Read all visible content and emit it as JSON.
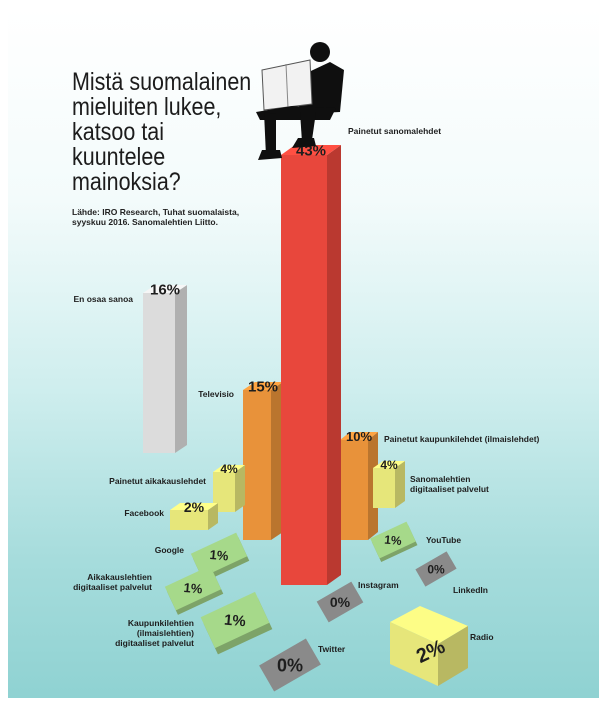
{
  "colors": {
    "red": "#e8473c",
    "orange": "#e8923a",
    "gray": "#dcdcdc",
    "yellow": "#e6e67a",
    "green": "#a6d98a",
    "darkgray": "#8a8a8a"
  },
  "icons": {
    "reader": "man-reading-newspaper-icon"
  },
  "chart_data": {
    "type": "bar",
    "title": "Mistä suomalainen\nmieluiten lukee,\nkatsoo tai kuuntelee\nmainoksia?",
    "source": "Lähde: IRO Research, Tuhat suomalaista,\nsyyskuu 2016. Sanomalehtien Liitto.",
    "unit": "%",
    "series": [
      {
        "label": "Painetut sanomalehdet",
        "value": 43,
        "display": "43%"
      },
      {
        "label": "En osaa sanoa",
        "value": 16,
        "display": "16%"
      },
      {
        "label": "Televisio",
        "value": 15,
        "display": "15%"
      },
      {
        "label": "Painetut kaupunkilehdet (ilmaislehdet)",
        "value": 10,
        "display": "10%"
      },
      {
        "label": "Painetut aikakauslehdet",
        "value": 4,
        "display": "4%"
      },
      {
        "label": "Sanomalehtien\ndigitaaliset palvelut",
        "value": 4,
        "display": "4%"
      },
      {
        "label": "Facebook",
        "value": 2,
        "display": "2%"
      },
      {
        "label": "YouTube",
        "value": 1,
        "display": "1%"
      },
      {
        "label": "Google",
        "value": 1,
        "display": "1%"
      },
      {
        "label": "Aikakauslehtien\ndigitaaliset palvelut",
        "value": 1,
        "display": "1%"
      },
      {
        "label": "Instagram",
        "value": 0,
        "display": "0%"
      },
      {
        "label": "LinkedIn",
        "value": 0,
        "display": "0%"
      },
      {
        "label": "Kaupunkilehtien\n(ilmaislehtien)\ndigitaaliset palvelut",
        "value": 1,
        "display": "1%"
      },
      {
        "label": "Radio",
        "value": 2,
        "display": "2%"
      },
      {
        "label": "Twitter",
        "value": 0,
        "display": "0%"
      }
    ]
  }
}
